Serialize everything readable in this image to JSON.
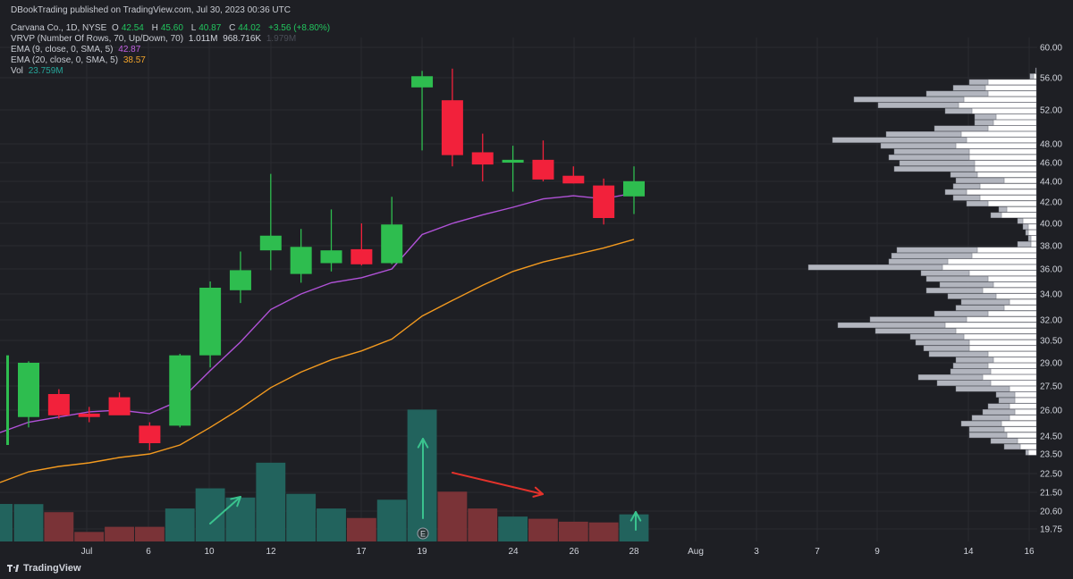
{
  "header": {
    "published": "DBookTrading published on TradingView.com, Jul 30, 2023 00:36 UTC",
    "symbol": "Carvana Co., 1D, NYSE",
    "open_label": "O",
    "open": "42.54",
    "high_label": "H",
    "high": "45.60",
    "low_label": "L",
    "low": "40.87",
    "close_label": "C",
    "close": "44.02",
    "change": "+3.56 (+8.80%)",
    "vrvp_label": "VRVP (Number Of Rows, 70, Up/Down, 70)",
    "vrvp_v1": "1.011M",
    "vrvp_v2": "968.716K",
    "vrvp_v3": "1.979M",
    "ema9_label": "EMA (9, close, 0, SMA, 5)",
    "ema9_value": "42.87",
    "ema20_label": "EMA (20, close, 0, SMA, 5)",
    "ema20_value": "38.57",
    "vol_label": "Vol",
    "vol_value": "23.759M"
  },
  "brand": "TradingView",
  "colors": {
    "bg": "#1e1f24",
    "up": "#2ebd4f",
    "down": "#f2213b",
    "vol_up": "#22635d",
    "vol_down": "#7a3337",
    "ema9": "#b152d8",
    "ema20": "#f39a1f",
    "arrow_green": "#3ac38e",
    "arrow_red": "#e4322b",
    "vp_up": "#ffffff",
    "vp_down": "#b2b5be"
  },
  "chart_data": {
    "type": "candlestick",
    "y_ticks": [
      "60.00",
      "56.00",
      "52.00",
      "48.00",
      "46.00",
      "44.00",
      "42.00",
      "40.00",
      "38.00",
      "36.00",
      "34.00",
      "32.00",
      "30.50",
      "29.00",
      "27.50",
      "26.00",
      "24.50",
      "23.50",
      "22.50",
      "21.50",
      "20.60",
      "19.75"
    ],
    "x_ticks": [
      "Jul",
      "6",
      "10",
      "12",
      "17",
      "19",
      "24",
      "26",
      "28",
      "Aug",
      "3",
      "7",
      "9",
      "14",
      "16"
    ],
    "candles": [
      {
        "o": 25.6,
        "h": 29.1,
        "l": 25.0,
        "c": 29.0
      },
      {
        "o": 27.0,
        "h": 27.3,
        "l": 25.5,
        "c": 25.7
      },
      {
        "o": 25.8,
        "h": 26.2,
        "l": 25.3,
        "c": 25.6
      },
      {
        "o": 26.8,
        "h": 27.1,
        "l": 25.8,
        "c": 25.7
      },
      {
        "o": 25.1,
        "h": 25.3,
        "l": 23.7,
        "c": 24.1
      },
      {
        "o": 25.1,
        "h": 29.6,
        "l": 25.0,
        "c": 29.5
      },
      {
        "o": 29.5,
        "h": 35.0,
        "l": 28.7,
        "c": 34.5
      },
      {
        "o": 34.3,
        "h": 37.5,
        "l": 33.3,
        "c": 35.9
      },
      {
        "o": 37.6,
        "h": 44.8,
        "l": 35.9,
        "c": 38.9
      },
      {
        "o": 35.6,
        "h": 39.5,
        "l": 34.9,
        "c": 37.9
      },
      {
        "o": 36.5,
        "h": 41.3,
        "l": 35.8,
        "c": 37.6
      },
      {
        "o": 37.7,
        "h": 40.0,
        "l": 36.3,
        "c": 36.4
      },
      {
        "o": 36.5,
        "h": 42.5,
        "l": 36.4,
        "c": 39.9
      },
      {
        "o": 54.8,
        "h": 56.9,
        "l": 47.3,
        "c": 56.2
      },
      {
        "o": 53.2,
        "h": 57.2,
        "l": 45.6,
        "c": 46.8
      },
      {
        "o": 47.1,
        "h": 49.2,
        "l": 44.0,
        "c": 45.8
      },
      {
        "o": 46.0,
        "h": 47.8,
        "l": 43.0,
        "c": 46.3
      },
      {
        "o": 46.3,
        "h": 48.4,
        "l": 44.0,
        "c": 44.2
      },
      {
        "o": 44.6,
        "h": 45.6,
        "l": 43.8,
        "c": 43.8
      },
      {
        "o": 43.6,
        "h": 44.3,
        "l": 39.9,
        "c": 40.5
      },
      {
        "o": 42.54,
        "h": 45.6,
        "l": 40.87,
        "c": 44.02
      }
    ],
    "volume": [
      10.2,
      8.0,
      2.6,
      4.0,
      4.0,
      9.0,
      14.5,
      12.0,
      21.5,
      13.0,
      9.0,
      6.4,
      11.4,
      36.0,
      13.6,
      9.0,
      6.8,
      6.2,
      5.4,
      5.2,
      7.4
    ],
    "ema9": [
      25.3,
      25.6,
      25.9,
      26.0,
      25.8,
      26.6,
      28.5,
      30.4,
      32.8,
      34.0,
      34.9,
      35.3,
      36.0,
      39.0,
      40.0,
      40.8,
      41.5,
      42.3,
      42.6,
      42.3,
      42.87
    ],
    "ema20": [
      22.5,
      22.8,
      23.0,
      23.3,
      23.5,
      24.0,
      25.0,
      26.1,
      27.4,
      28.4,
      29.2,
      29.8,
      30.6,
      32.3,
      33.5,
      34.7,
      35.8,
      36.6,
      37.2,
      37.8,
      38.57
    ],
    "volume_profile": [
      {
        "up": 0.0,
        "dn": 0.003
      },
      {
        "up": 0.01,
        "dn": 0.014
      },
      {
        "up": 0.18,
        "dn": 0.07
      },
      {
        "up": 0.19,
        "dn": 0.12
      },
      {
        "up": 0.18,
        "dn": 0.23
      },
      {
        "up": 0.27,
        "dn": 0.41
      },
      {
        "up": 0.29,
        "dn": 0.3
      },
      {
        "up": 0.24,
        "dn": 0.1
      },
      {
        "up": 0.15,
        "dn": 0.08
      },
      {
        "up": 0.16,
        "dn": 0.07
      },
      {
        "up": 0.18,
        "dn": 0.2
      },
      {
        "up": 0.28,
        "dn": 0.28
      },
      {
        "up": 0.26,
        "dn": 0.5
      },
      {
        "up": 0.3,
        "dn": 0.28
      },
      {
        "up": 0.25,
        "dn": 0.28
      },
      {
        "up": 0.25,
        "dn": 0.3
      },
      {
        "up": 0.23,
        "dn": 0.28
      },
      {
        "up": 0.23,
        "dn": 0.3
      },
      {
        "up": 0.22,
        "dn": 0.1
      },
      {
        "up": 0.12,
        "dn": 0.18
      },
      {
        "up": 0.21,
        "dn": 0.1
      },
      {
        "up": 0.26,
        "dn": 0.08
      },
      {
        "up": 0.21,
        "dn": 0.1
      },
      {
        "up": 0.18,
        "dn": 0.08
      },
      {
        "up": 0.11,
        "dn": 0.03
      },
      {
        "up": 0.13,
        "dn": 0.04
      },
      {
        "up": 0.05,
        "dn": 0.02
      },
      {
        "up": 0.03,
        "dn": 0.02
      },
      {
        "up": 0.03,
        "dn": 0.01
      },
      {
        "up": 0.02,
        "dn": 0.01
      },
      {
        "up": 0.02,
        "dn": 0.05
      },
      {
        "up": 0.22,
        "dn": 0.3
      },
      {
        "up": 0.24,
        "dn": 0.3
      },
      {
        "up": 0.33,
        "dn": 0.22
      },
      {
        "up": 0.35,
        "dn": 0.5
      },
      {
        "up": 0.25,
        "dn": 0.18
      },
      {
        "up": 0.18,
        "dn": 0.23
      },
      {
        "up": 0.16,
        "dn": 0.2
      },
      {
        "up": 0.2,
        "dn": 0.21
      },
      {
        "up": 0.15,
        "dn": 0.18
      },
      {
        "up": 0.1,
        "dn": 0.18
      },
      {
        "up": 0.12,
        "dn": 0.18
      },
      {
        "up": 0.18,
        "dn": 0.2
      },
      {
        "up": 0.26,
        "dn": 0.36
      },
      {
        "up": 0.34,
        "dn": 0.4
      },
      {
        "up": 0.3,
        "dn": 0.3
      },
      {
        "up": 0.27,
        "dn": 0.2
      },
      {
        "up": 0.25,
        "dn": 0.2
      },
      {
        "up": 0.25,
        "dn": 0.17
      },
      {
        "up": 0.18,
        "dn": 0.22
      },
      {
        "up": 0.16,
        "dn": 0.14
      },
      {
        "up": 0.18,
        "dn": 0.13
      },
      {
        "up": 0.17,
        "dn": 0.15
      },
      {
        "up": 0.2,
        "dn": 0.24
      },
      {
        "up": 0.17,
        "dn": 0.2
      },
      {
        "up": 0.1,
        "dn": 0.2
      },
      {
        "up": 0.08,
        "dn": 0.07
      },
      {
        "up": 0.08,
        "dn": 0.06
      },
      {
        "up": 0.1,
        "dn": 0.08
      },
      {
        "up": 0.08,
        "dn": 0.12
      },
      {
        "up": 0.1,
        "dn": 0.14
      },
      {
        "up": 0.13,
        "dn": 0.15
      },
      {
        "up": 0.12,
        "dn": 0.13
      },
      {
        "up": 0.11,
        "dn": 0.14
      },
      {
        "up": 0.07,
        "dn": 0.1
      },
      {
        "up": 0.06,
        "dn": 0.06
      },
      {
        "up": 0.03,
        "dn": 0.01
      }
    ]
  }
}
